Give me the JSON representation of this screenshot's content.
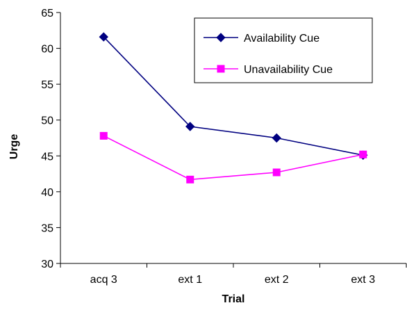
{
  "chart_data": {
    "type": "line",
    "categories": [
      "acq 3",
      "ext 1",
      "ext 2",
      "ext 3"
    ],
    "series": [
      {
        "name": "Availability Cue",
        "values": [
          61.6,
          49.1,
          47.5,
          45.1
        ],
        "color": "#000080",
        "marker": "diamond"
      },
      {
        "name": "Unavailability Cue",
        "values": [
          47.8,
          41.7,
          42.7,
          45.2
        ],
        "color": "#FF00FF",
        "marker": "square"
      }
    ],
    "xlabel": "Trial",
    "ylabel": "Urge",
    "ylim": [
      30,
      65
    ],
    "yticks": [
      30,
      35,
      40,
      45,
      50,
      55,
      60,
      65
    ],
    "grid": false,
    "legend_position": "top-right"
  }
}
